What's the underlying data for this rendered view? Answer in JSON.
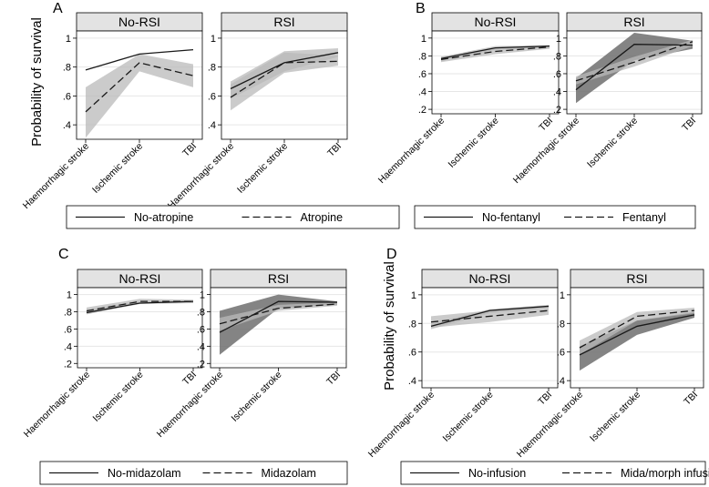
{
  "figure": {
    "y_axis_label": "Probability of survival",
    "strip_labels": [
      "No-RSI",
      "RSI"
    ],
    "categories": [
      "Haemorrhagic stroke",
      "Ischemic stroke",
      "TBI"
    ]
  },
  "colors": {
    "ci_light": "#b9b9b9",
    "ci_dark": "#6e6e6e",
    "strip_bg": "#e3e3e3",
    "line": "#1a1a1a"
  },
  "chart_data": [
    {
      "panel": "A",
      "type": "line",
      "show_ylabel": true,
      "ylim": [
        0.3,
        1.05
      ],
      "yticks": [
        0.4,
        0.6,
        0.8,
        1
      ],
      "ytick_labels": [
        ".4",
        ".6",
        ".8",
        "1"
      ],
      "legend": [
        "No-atropine",
        "Atropine"
      ],
      "subplots": [
        {
          "strip": "No-RSI",
          "categories": [
            "Haemorrhagic stroke",
            "Ischemic stroke",
            "TBI"
          ],
          "series": [
            {
              "name": "No-atropine",
              "style": "solid",
              "values": [
                0.78,
                0.89,
                0.92
              ],
              "ci_lower": null,
              "ci_upper": null,
              "ci_shade": null
            },
            {
              "name": "Atropine",
              "style": "dashed",
              "values": [
                0.49,
                0.83,
                0.74
              ],
              "ci_lower": [
                0.31,
                0.77,
                0.66
              ],
              "ci_upper": [
                0.66,
                0.89,
                0.82
              ],
              "ci_shade": "light"
            }
          ]
        },
        {
          "strip": "RSI",
          "categories": [
            "Haemorrhagic stroke",
            "Ischemic stroke",
            "TBI"
          ],
          "series": [
            {
              "name": "No-atropine",
              "style": "solid",
              "values": [
                0.65,
                0.83,
                0.9
              ],
              "ci_lower": [
                0.58,
                0.77,
                0.87
              ],
              "ci_upper": [
                0.7,
                0.91,
                0.93
              ],
              "ci_shade": "light"
            },
            {
              "name": "Atropine",
              "style": "dashed",
              "values": [
                0.59,
                0.83,
                0.84
              ],
              "ci_lower": [
                0.5,
                0.76,
                0.81
              ],
              "ci_upper": [
                0.68,
                0.9,
                0.88
              ],
              "ci_shade": "light"
            }
          ]
        }
      ]
    },
    {
      "panel": "B",
      "type": "line",
      "show_ylabel": false,
      "ylim": [
        0.15,
        1.08
      ],
      "yticks": [
        0.2,
        0.4,
        0.6,
        0.8,
        1
      ],
      "ytick_labels": [
        ".2",
        ".4",
        ".6",
        ".8",
        "1"
      ],
      "legend": [
        "No-fentanyl",
        "Fentanyl"
      ],
      "subplots": [
        {
          "strip": "No-RSI",
          "categories": [
            "Haemorrhagic stroke",
            "Ischemic stroke",
            "TBI"
          ],
          "series": [
            {
              "name": "No-fentanyl",
              "style": "solid",
              "values": [
                0.77,
                0.89,
                0.91
              ],
              "ci_lower": [
                0.74,
                0.87,
                0.89
              ],
              "ci_upper": [
                0.79,
                0.91,
                0.92
              ],
              "ci_shade": "light"
            },
            {
              "name": "Fentanyl",
              "style": "dashed",
              "values": [
                0.76,
                0.85,
                0.9
              ],
              "ci_lower": [
                0.73,
                0.82,
                0.88
              ],
              "ci_upper": [
                0.79,
                0.88,
                0.92
              ],
              "ci_shade": "light"
            }
          ]
        },
        {
          "strip": "RSI",
          "categories": [
            "Haemorrhagic stroke",
            "Ischemic stroke",
            "TBI"
          ],
          "series": [
            {
              "name": "No-fentanyl",
              "style": "solid",
              "values": [
                0.42,
                0.93,
                0.92
              ],
              "ci_lower": [
                0.27,
                0.75,
                0.88
              ],
              "ci_upper": [
                0.55,
                1.06,
                0.97
              ],
              "ci_shade": "dark"
            },
            {
              "name": "Fentanyl",
              "style": "dashed",
              "values": [
                0.52,
                0.73,
                0.96
              ],
              "ci_lower": [
                0.48,
                0.68,
                0.91
              ],
              "ci_upper": [
                0.57,
                0.79,
                0.98
              ],
              "ci_shade": "light"
            }
          ]
        }
      ]
    },
    {
      "panel": "C",
      "type": "line",
      "show_ylabel": false,
      "ylim": [
        0.15,
        1.08
      ],
      "yticks": [
        0.2,
        0.4,
        0.6,
        0.8,
        1
      ],
      "ytick_labels": [
        ".2",
        ".4",
        ".6",
        ".8",
        "1"
      ],
      "legend": [
        "No-midazolam",
        "Midazolam"
      ],
      "subplots": [
        {
          "strip": "No-RSI",
          "categories": [
            "Haemorrhagic stroke",
            "Ischemic stroke",
            "TBI"
          ],
          "series": [
            {
              "name": "No-midazolam",
              "style": "solid",
              "values": [
                0.79,
                0.9,
                0.92
              ],
              "ci_lower": [
                0.77,
                0.89,
                0.9
              ],
              "ci_upper": [
                0.82,
                0.92,
                0.93
              ],
              "ci_shade": "light"
            },
            {
              "name": "Midazolam",
              "style": "dashed",
              "values": [
                0.81,
                0.92,
                0.92
              ],
              "ci_lower": [
                0.78,
                0.9,
                0.9
              ],
              "ci_upper": [
                0.85,
                0.95,
                0.94
              ],
              "ci_shade": "light"
            }
          ]
        },
        {
          "strip": "RSI",
          "categories": [
            "Haemorrhagic stroke",
            "Ischemic stroke",
            "TBI"
          ],
          "series": [
            {
              "name": "No-midazolam",
              "style": "solid",
              "values": [
                0.56,
                0.92,
                0.91
              ],
              "ci_lower": [
                0.3,
                0.84,
                0.88
              ],
              "ci_upper": [
                0.81,
                1.0,
                0.92
              ],
              "ci_shade": "dark"
            },
            {
              "name": "Midazolam",
              "style": "dashed",
              "values": [
                0.66,
                0.84,
                0.89
              ],
              "ci_lower": [
                0.58,
                0.81,
                0.87
              ],
              "ci_upper": [
                0.73,
                0.88,
                0.91
              ],
              "ci_shade": "light"
            }
          ]
        }
      ]
    },
    {
      "panel": "D",
      "type": "line",
      "show_ylabel": true,
      "ylim": [
        0.35,
        1.05
      ],
      "yticks": [
        0.4,
        0.6,
        0.8,
        1
      ],
      "ytick_labels": [
        ".4",
        ".6",
        ".8",
        "1"
      ],
      "legend": [
        "No-infusion",
        "Mida/morph infusion"
      ],
      "subplots": [
        {
          "strip": "No-RSI",
          "categories": [
            "Haemorrhagic stroke",
            "Ischemic stroke",
            "TBI"
          ],
          "series": [
            {
              "name": "No-infusion",
              "style": "solid",
              "values": [
                0.78,
                0.89,
                0.92
              ],
              "ci_lower": [
                0.76,
                0.87,
                0.91
              ],
              "ci_upper": [
                0.8,
                0.9,
                0.93
              ],
              "ci_shade": "light"
            },
            {
              "name": "Mida/morph infusion",
              "style": "dashed",
              "values": [
                0.81,
                0.85,
                0.89
              ],
              "ci_lower": [
                0.77,
                0.81,
                0.86
              ],
              "ci_upper": [
                0.85,
                0.89,
                0.92
              ],
              "ci_shade": "light"
            }
          ]
        },
        {
          "strip": "RSI",
          "categories": [
            "Haemorrhagic stroke",
            "Ischemic stroke",
            "TBI"
          ],
          "series": [
            {
              "name": "No-infusion",
              "style": "solid",
              "values": [
                0.58,
                0.78,
                0.86
              ],
              "ci_lower": [
                0.47,
                0.72,
                0.84
              ],
              "ci_upper": [
                0.64,
                0.82,
                0.88
              ],
              "ci_shade": "dark"
            },
            {
              "name": "Mida/morph infusion",
              "style": "dashed",
              "values": [
                0.63,
                0.85,
                0.89
              ],
              "ci_lower": [
                0.58,
                0.82,
                0.87
              ],
              "ci_upper": [
                0.68,
                0.88,
                0.91
              ],
              "ci_shade": "light"
            }
          ]
        }
      ]
    }
  ]
}
